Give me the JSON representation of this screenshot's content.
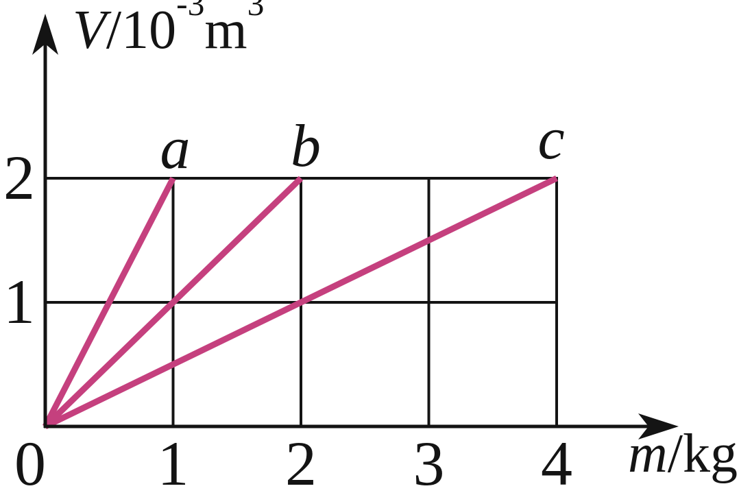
{
  "figure": {
    "background": "#ffffff",
    "axis_color": "#141414",
    "grid_color": "#141414",
    "series_color": "#C5407E"
  },
  "labels": {
    "y_axis": {
      "variable": "V",
      "divider": "/",
      "base": "10",
      "exponent": "-3",
      "unit": "m",
      "unit_exponent": "3"
    },
    "x_axis": {
      "variable": "m",
      "divider": "/",
      "unit": "kg"
    }
  },
  "chart_data": {
    "type": "line",
    "title": "",
    "xlabel": "m/kg",
    "ylabel": "V/10^-3 m^3",
    "xlim": [
      0,
      4
    ],
    "ylim": [
      0,
      2
    ],
    "x_ticks": [
      0,
      1,
      2,
      3,
      4
    ],
    "y_ticks": [
      1,
      2
    ],
    "grid": true,
    "legend_position": "labels-at-line-ends",
    "series": [
      {
        "name": "a",
        "points": [
          [
            0,
            0
          ],
          [
            1,
            2
          ]
        ],
        "slope_V_per_kg": 2
      },
      {
        "name": "b",
        "points": [
          [
            0,
            0
          ],
          [
            2,
            2
          ]
        ],
        "slope_V_per_kg": 1
      },
      {
        "name": "c",
        "points": [
          [
            0,
            0
          ],
          [
            4,
            2
          ]
        ],
        "slope_V_per_kg": 0.5
      }
    ]
  }
}
